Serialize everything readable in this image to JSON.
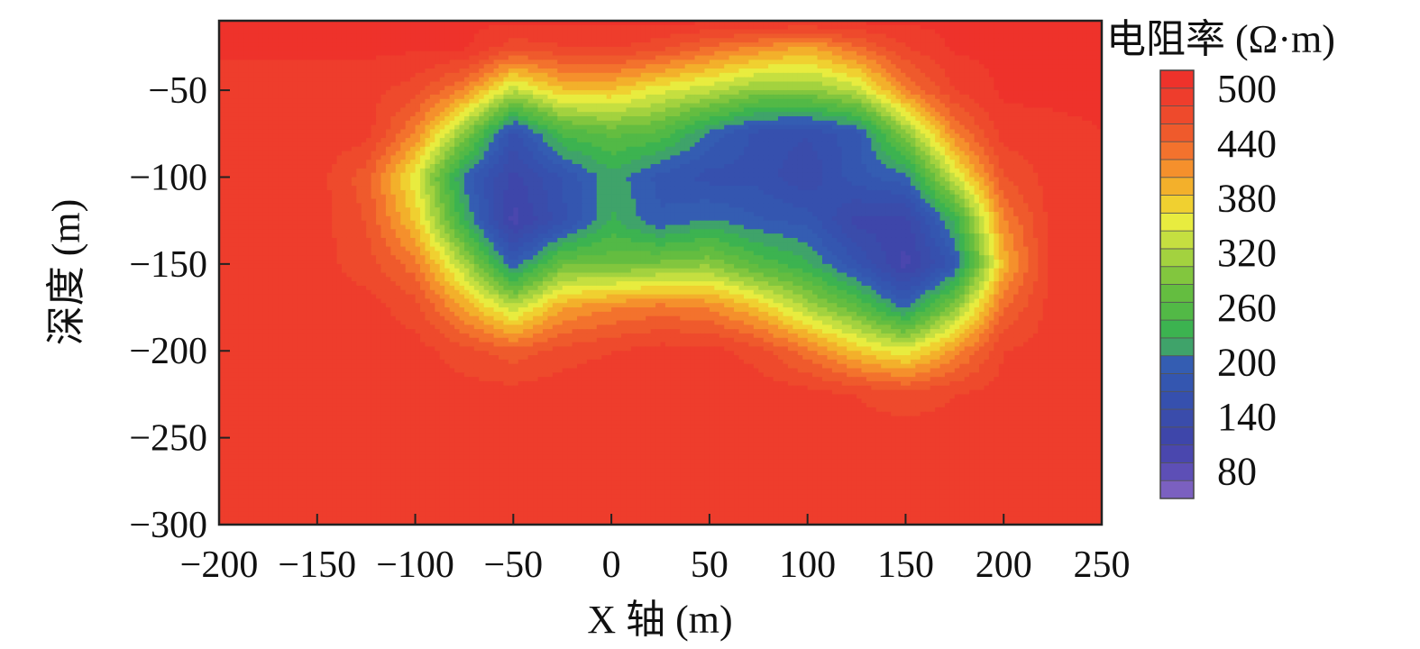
{
  "chart_data": {
    "type": "heatmap",
    "title": "",
    "xlabel": "X 轴 (m)",
    "ylabel": "深度 (m)",
    "xlim": [
      -200,
      250
    ],
    "ylim": [
      -300,
      -10
    ],
    "x_ticks": [
      -200,
      -150,
      -100,
      -50,
      0,
      50,
      100,
      150,
      200,
      250
    ],
    "x_tick_labels": [
      "−200",
      "−150",
      "−100",
      "−50",
      "0",
      "50",
      "100",
      "150",
      "200",
      "250"
    ],
    "y_ticks": [
      -50,
      -100,
      -150,
      -200,
      -250,
      -300
    ],
    "y_tick_labels": [
      "−50",
      "−100",
      "−150",
      "−200",
      "−250",
      "−300"
    ],
    "grid": false,
    "colorbar": {
      "title": "电阻率 (Ω·m)",
      "min": 50,
      "max": 520,
      "ticks": [
        500,
        440,
        380,
        320,
        260,
        200,
        140,
        80
      ],
      "colors": [
        "#7b60c0",
        "#5d4fb6",
        "#4a47ae",
        "#3e46aa",
        "#3a4cab",
        "#3650ae",
        "#3456b0",
        "#345db2",
        "#3fa36a",
        "#3cb350",
        "#52b946",
        "#64bd40",
        "#82c63e",
        "#a3d23f",
        "#c5df40",
        "#e8ec3f",
        "#f0d030",
        "#f3b02b",
        "#f5902c",
        "#f3722d",
        "#ef5a2c",
        "#ee4a2c",
        "#ee3d2c",
        "#ee322b"
      ]
    },
    "grid_x": [
      -200,
      -175,
      -150,
      -125,
      -100,
      -75,
      -50,
      -25,
      0,
      25,
      50,
      75,
      100,
      125,
      150,
      175,
      200,
      225,
      250
    ],
    "grid_y": [
      -10,
      -25,
      -50,
      -75,
      -100,
      -125,
      -150,
      -175,
      -200,
      -225,
      -250,
      -275,
      -300
    ],
    "values": [
      [
        505,
        505,
        505,
        505,
        505,
        505,
        505,
        505,
        505,
        505,
        505,
        505,
        505,
        505,
        505,
        505,
        505,
        505,
        505
      ],
      [
        505,
        505,
        505,
        505,
        505,
        505,
        470,
        480,
        485,
        470,
        440,
        420,
        400,
        440,
        480,
        505,
        505,
        505,
        505
      ],
      [
        490,
        490,
        490,
        490,
        470,
        420,
        330,
        380,
        380,
        350,
        330,
        300,
        300,
        330,
        420,
        480,
        505,
        505,
        505
      ],
      [
        490,
        490,
        490,
        490,
        420,
        300,
        160,
        250,
        270,
        260,
        200,
        160,
        150,
        180,
        300,
        420,
        490,
        495,
        500
      ],
      [
        490,
        490,
        490,
        450,
        350,
        200,
        120,
        170,
        220,
        180,
        160,
        160,
        130,
        180,
        200,
        340,
        460,
        490,
        500
      ],
      [
        490,
        490,
        490,
        460,
        380,
        230,
        100,
        160,
        230,
        190,
        210,
        190,
        180,
        120,
        120,
        230,
        420,
        490,
        500
      ],
      [
        490,
        490,
        490,
        470,
        430,
        320,
        190,
        280,
        280,
        290,
        300,
        260,
        230,
        170,
        100,
        180,
        390,
        490,
        500
      ],
      [
        490,
        490,
        490,
        490,
        470,
        400,
        330,
        400,
        420,
        430,
        420,
        380,
        320,
        270,
        200,
        300,
        440,
        490,
        500
      ],
      [
        490,
        490,
        490,
        490,
        490,
        470,
        450,
        470,
        480,
        490,
        490,
        470,
        430,
        380,
        350,
        410,
        480,
        490,
        500
      ],
      [
        490,
        490,
        490,
        490,
        490,
        490,
        490,
        495,
        500,
        500,
        500,
        495,
        490,
        480,
        470,
        480,
        490,
        490,
        500
      ],
      [
        490,
        490,
        490,
        490,
        490,
        490,
        495,
        500,
        500,
        500,
        500,
        500,
        495,
        490,
        490,
        490,
        490,
        490,
        500
      ],
      [
        490,
        490,
        490,
        490,
        490,
        490,
        495,
        500,
        500,
        500,
        500,
        500,
        495,
        490,
        490,
        490,
        490,
        490,
        500
      ],
      [
        490,
        490,
        490,
        490,
        490,
        490,
        495,
        500,
        500,
        500,
        500,
        500,
        495,
        490,
        490,
        490,
        490,
        490,
        500
      ]
    ]
  }
}
